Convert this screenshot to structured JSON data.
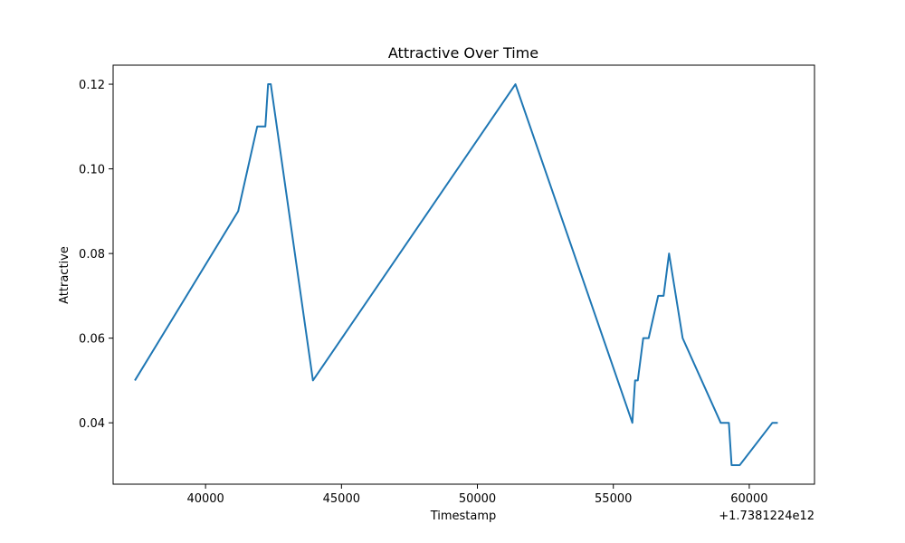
{
  "chart_data": {
    "type": "line",
    "title": "Attractive Over Time",
    "xlabel": "Timestamp",
    "ylabel": "Attractive",
    "x_offset_label": "+1.7381224e12",
    "xlim": [
      36600,
      62400
    ],
    "ylim": [
      0.0255,
      0.1245
    ],
    "xticks": [
      40000,
      45000,
      50000,
      55000,
      60000
    ],
    "xtick_labels": [
      "40000",
      "45000",
      "50000",
      "55000",
      "60000"
    ],
    "yticks": [
      0.04,
      0.06,
      0.08,
      0.1,
      0.12
    ],
    "ytick_labels": [
      "0.04",
      "0.06",
      "0.08",
      "0.10",
      "0.12"
    ],
    "grid": false,
    "legend": "none",
    "color": "#1f77b4",
    "series": [
      {
        "x": [
          37400,
          41200,
          41900,
          42200,
          42300,
          42400,
          43950,
          51400,
          55700,
          55800,
          55900,
          56100,
          56300,
          56650,
          56850,
          57050,
          57550,
          58950,
          59250,
          59350,
          59650,
          60850,
          61050
        ],
        "y": [
          0.05,
          0.09,
          0.11,
          0.11,
          0.12,
          0.12,
          0.05,
          0.12,
          0.04,
          0.05,
          0.05,
          0.06,
          0.06,
          0.07,
          0.07,
          0.08,
          0.06,
          0.04,
          0.04,
          0.03,
          0.03,
          0.04,
          0.04
        ]
      }
    ]
  }
}
